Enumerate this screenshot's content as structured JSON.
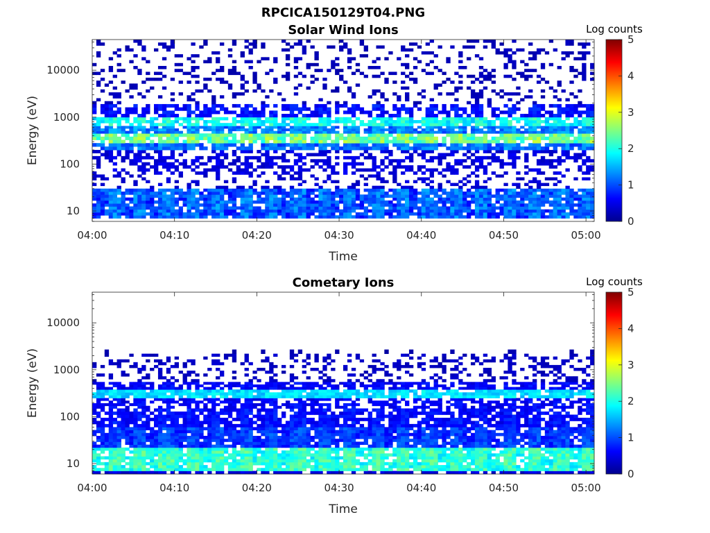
{
  "figure": {
    "title": "RPCICA150129T04.PNG"
  },
  "colormap": {
    "name": "jet",
    "stops": [
      "#00008f",
      "#0000ff",
      "#0080ff",
      "#00ffff",
      "#80ff80",
      "#ffff00",
      "#ff8000",
      "#ff0000",
      "#800000"
    ]
  },
  "chart_data": [
    {
      "type": "heatmap",
      "title": "Solar Wind Ions",
      "xlabel": "Time",
      "ylabel": "Energy (eV)",
      "x_range_minutes": [
        0,
        61
      ],
      "x_ticks": [
        {
          "minute": 0,
          "label": "04:00"
        },
        {
          "minute": 10,
          "label": "04:10"
        },
        {
          "minute": 20,
          "label": "04:20"
        },
        {
          "minute": 30,
          "label": "04:30"
        },
        {
          "minute": 40,
          "label": "04:40"
        },
        {
          "minute": 50,
          "label": "04:50"
        },
        {
          "minute": 60,
          "label": "05:00"
        }
      ],
      "y_scale": "log",
      "y_range": [
        6,
        45000
      ],
      "y_ticks": [
        {
          "value": 10,
          "label": "10"
        },
        {
          "value": 100,
          "label": "100"
        },
        {
          "value": 1000,
          "label": "1000"
        },
        {
          "value": 10000,
          "label": "10000"
        }
      ],
      "colorbar": {
        "label": "Log counts",
        "min": 0,
        "max": 5,
        "ticks": [
          "0",
          "1",
          "2",
          "3",
          "4",
          "5"
        ]
      },
      "bands": [
        {
          "e_min": 7,
          "e_max": 30,
          "level_min": 0.2,
          "level_max": 1.5,
          "fill": 0.98
        },
        {
          "e_min": 30,
          "e_max": 60,
          "level_min": 0.1,
          "level_max": 0.5,
          "fill": 0.3
        },
        {
          "e_min": 60,
          "e_max": 200,
          "level_min": 0.1,
          "level_max": 0.6,
          "fill": 0.55
        },
        {
          "e_min": 200,
          "e_max": 280,
          "level_min": 0.5,
          "level_max": 1.5,
          "fill": 0.95
        },
        {
          "e_min": 280,
          "e_max": 450,
          "level_min": 1.5,
          "level_max": 2.9,
          "fill": 0.95
        },
        {
          "e_min": 450,
          "e_max": 650,
          "level_min": 0.6,
          "level_max": 1.6,
          "fill": 0.9
        },
        {
          "e_min": 650,
          "e_max": 1000,
          "level_min": 1.2,
          "level_max": 2.3,
          "fill": 0.9
        },
        {
          "e_min": 1000,
          "e_max": 1900,
          "level_min": 0.2,
          "level_max": 0.9,
          "fill": 0.75
        },
        {
          "e_min": 1900,
          "e_max": 45000,
          "level_min": 0.05,
          "level_max": 0.3,
          "fill": 0.22
        }
      ]
    },
    {
      "type": "heatmap",
      "title": "Cometary Ions",
      "xlabel": "Time",
      "ylabel": "Energy (eV)",
      "x_range_minutes": [
        0,
        61
      ],
      "x_ticks": [
        {
          "minute": 0,
          "label": "04:00"
        },
        {
          "minute": 10,
          "label": "04:10"
        },
        {
          "minute": 20,
          "label": "04:20"
        },
        {
          "minute": 30,
          "label": "04:30"
        },
        {
          "minute": 40,
          "label": "04:40"
        },
        {
          "minute": 50,
          "label": "04:50"
        },
        {
          "minute": 60,
          "label": "05:00"
        }
      ],
      "y_scale": "log",
      "y_range": [
        6,
        45000
      ],
      "y_ticks": [
        {
          "value": 10,
          "label": "10"
        },
        {
          "value": 100,
          "label": "100"
        },
        {
          "value": 1000,
          "label": "1000"
        },
        {
          "value": 10000,
          "label": "10000"
        }
      ],
      "colorbar": {
        "label": "Log counts",
        "min": 0,
        "max": 5,
        "ticks": [
          "0",
          "1",
          "2",
          "3",
          "4",
          "5"
        ]
      },
      "bands": [
        {
          "e_min": 6,
          "e_max": 7,
          "level_min": 0.1,
          "level_max": 0.6,
          "fill": 0.85
        },
        {
          "e_min": 7,
          "e_max": 22,
          "level_min": 1.3,
          "level_max": 2.5,
          "fill": 1.0
        },
        {
          "e_min": 22,
          "e_max": 60,
          "level_min": 0.3,
          "level_max": 1.2,
          "fill": 0.98
        },
        {
          "e_min": 60,
          "e_max": 150,
          "level_min": 0.2,
          "level_max": 0.9,
          "fill": 0.85
        },
        {
          "e_min": 150,
          "e_max": 250,
          "level_min": 0.2,
          "level_max": 0.8,
          "fill": 0.75
        },
        {
          "e_min": 250,
          "e_max": 380,
          "level_min": 1.2,
          "level_max": 2.0,
          "fill": 0.95
        },
        {
          "e_min": 380,
          "e_max": 550,
          "level_min": 0.2,
          "level_max": 0.8,
          "fill": 0.85
        },
        {
          "e_min": 550,
          "e_max": 2200,
          "level_min": 0.05,
          "level_max": 0.4,
          "fill": 0.3
        },
        {
          "e_min": 2200,
          "e_max": 2700,
          "level_min": 0.05,
          "level_max": 0.2,
          "fill": 0.12
        }
      ]
    }
  ]
}
